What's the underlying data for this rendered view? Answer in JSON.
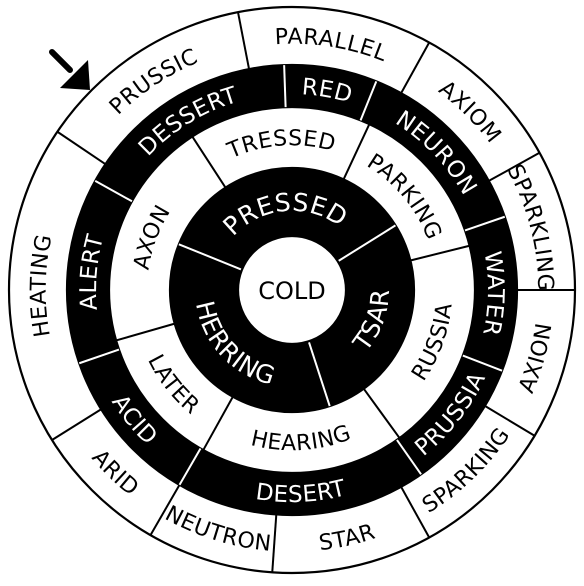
{
  "puzzle": {
    "center_label": "COLD",
    "colors": {
      "ink": "#000000",
      "paper": "#ffffff"
    },
    "pointer_icon": "arrow-pointer-icon",
    "rings": [
      {
        "fill": "#000000",
        "words": [
          "PRESSED",
          "TSAR",
          "HERRING"
        ]
      },
      {
        "fill": "#ffffff",
        "words": [
          "TRESSED",
          "PARKING",
          "RUSSIA",
          "HEARING",
          "LATER",
          "AXON"
        ]
      },
      {
        "fill": "#000000",
        "words": [
          "DESSERT",
          "RED",
          "NEURON",
          "WATER",
          "PRUSSIA",
          "DESERT",
          "ACID",
          "ALERT"
        ]
      },
      {
        "fill": "#ffffff",
        "words": [
          "PRUSSIC",
          "PARALLEL",
          "AXIOM",
          "SPARKLING",
          "AXION",
          "SPARKING",
          "STAR",
          "NEUTRON",
          "ARID",
          "HEATING"
        ]
      }
    ]
  }
}
